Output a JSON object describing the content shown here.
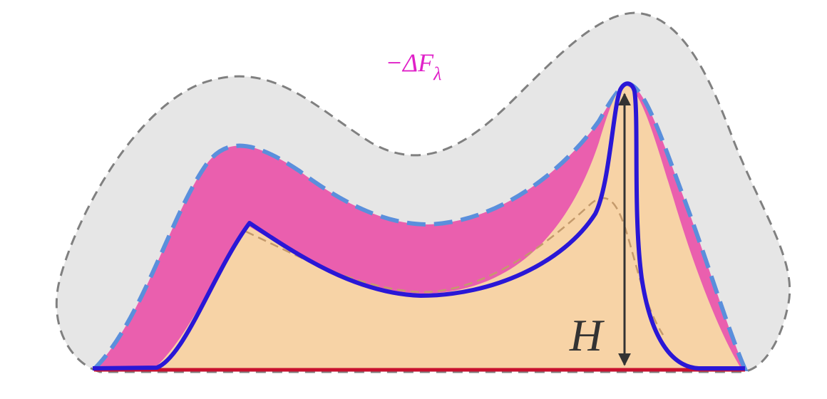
{
  "labels": {
    "free_energy": "−ΔF",
    "free_energy_subscript": "λ",
    "height": "H"
  }
}
